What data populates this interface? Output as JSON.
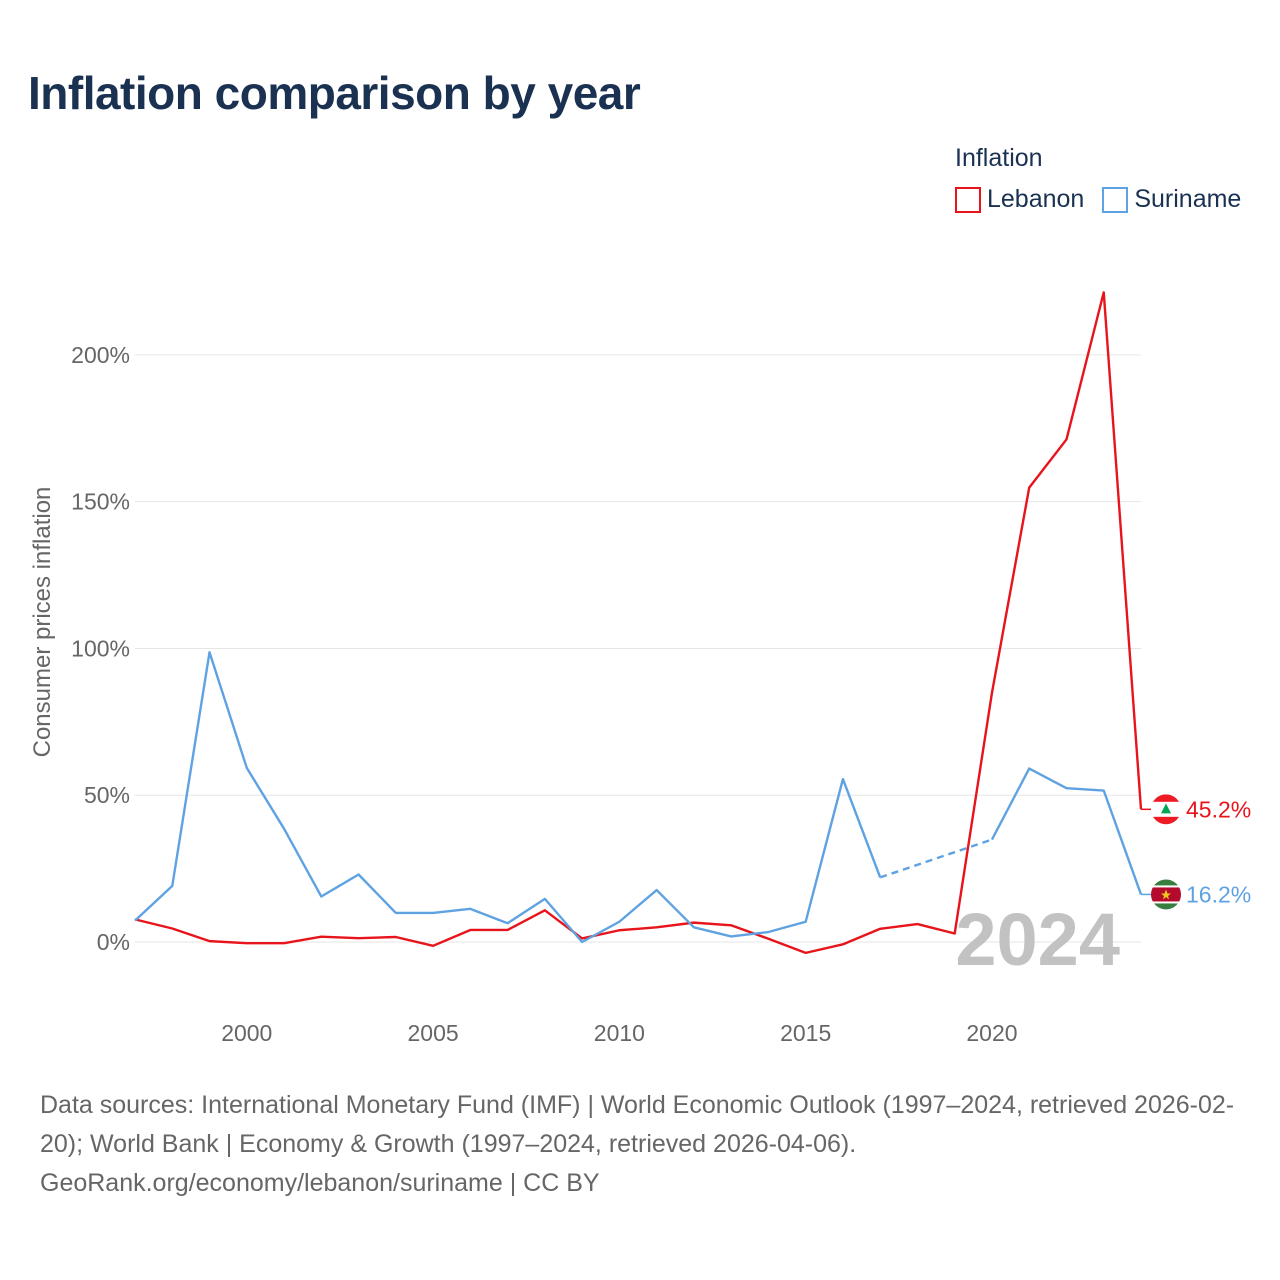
{
  "title": "Inflation comparison by year",
  "legend": {
    "title": "Inflation",
    "items": [
      {
        "label": "Lebanon",
        "color": "#e8141b"
      },
      {
        "label": "Suriname",
        "color": "#5fa2e2"
      }
    ]
  },
  "source_line_1": "Data sources: International Monetary Fund (IMF) | World Economic Outlook (1997–2024, retrieved 2026-02-20); World Bank | Economy & Growth (1997–2024, retrieved 2026-04-06).",
  "source_line_2": "GeoRank.org/economy/lebanon/suriname | CC BY",
  "year_watermark": "2024",
  "chart_data": {
    "type": "line",
    "title": "Inflation comparison by year",
    "xlabel": "",
    "ylabel": "Consumer prices inflation",
    "xlim": [
      1997,
      2024
    ],
    "ylim": [
      -20,
      220
    ],
    "xticks": [
      2000,
      2005,
      2010,
      2015,
      2020
    ],
    "yticks": [
      0,
      50,
      100,
      150,
      200
    ],
    "ytick_labels": [
      "0%",
      "50%",
      "100%",
      "150%",
      "200%"
    ],
    "x": [
      1997,
      1998,
      1999,
      2000,
      2001,
      2002,
      2003,
      2004,
      2005,
      2006,
      2007,
      2008,
      2009,
      2010,
      2011,
      2012,
      2013,
      2014,
      2015,
      2016,
      2017,
      2018,
      2019,
      2020,
      2021,
      2022,
      2023,
      2024
    ],
    "series": [
      {
        "name": "Lebanon",
        "color": "#e8141b",
        "values": [
          7.7,
          4.6,
          0.3,
          -0.4,
          -0.4,
          1.8,
          1.3,
          1.7,
          -1.3,
          4.1,
          4.1,
          10.8,
          1.2,
          4.0,
          5.0,
          6.6,
          5.7,
          1.1,
          -3.7,
          -0.8,
          4.5,
          6.1,
          2.9,
          84.9,
          154.8,
          171.2,
          221.3,
          45.2
        ],
        "end_label": "45.2%"
      },
      {
        "name": "Suriname",
        "color": "#5fa2e2",
        "values": [
          7.3,
          19.1,
          98.7,
          59.3,
          38.6,
          15.5,
          23.0,
          9.9,
          9.9,
          11.3,
          6.4,
          14.7,
          0.0,
          6.9,
          17.7,
          5.0,
          1.9,
          3.4,
          6.9,
          55.5,
          22.0,
          null,
          null,
          34.9,
          59.1,
          52.4,
          51.6,
          16.2
        ],
        "gap": {
          "from": 2017,
          "to": 2020
        },
        "end_label": "16.2%"
      }
    ]
  }
}
